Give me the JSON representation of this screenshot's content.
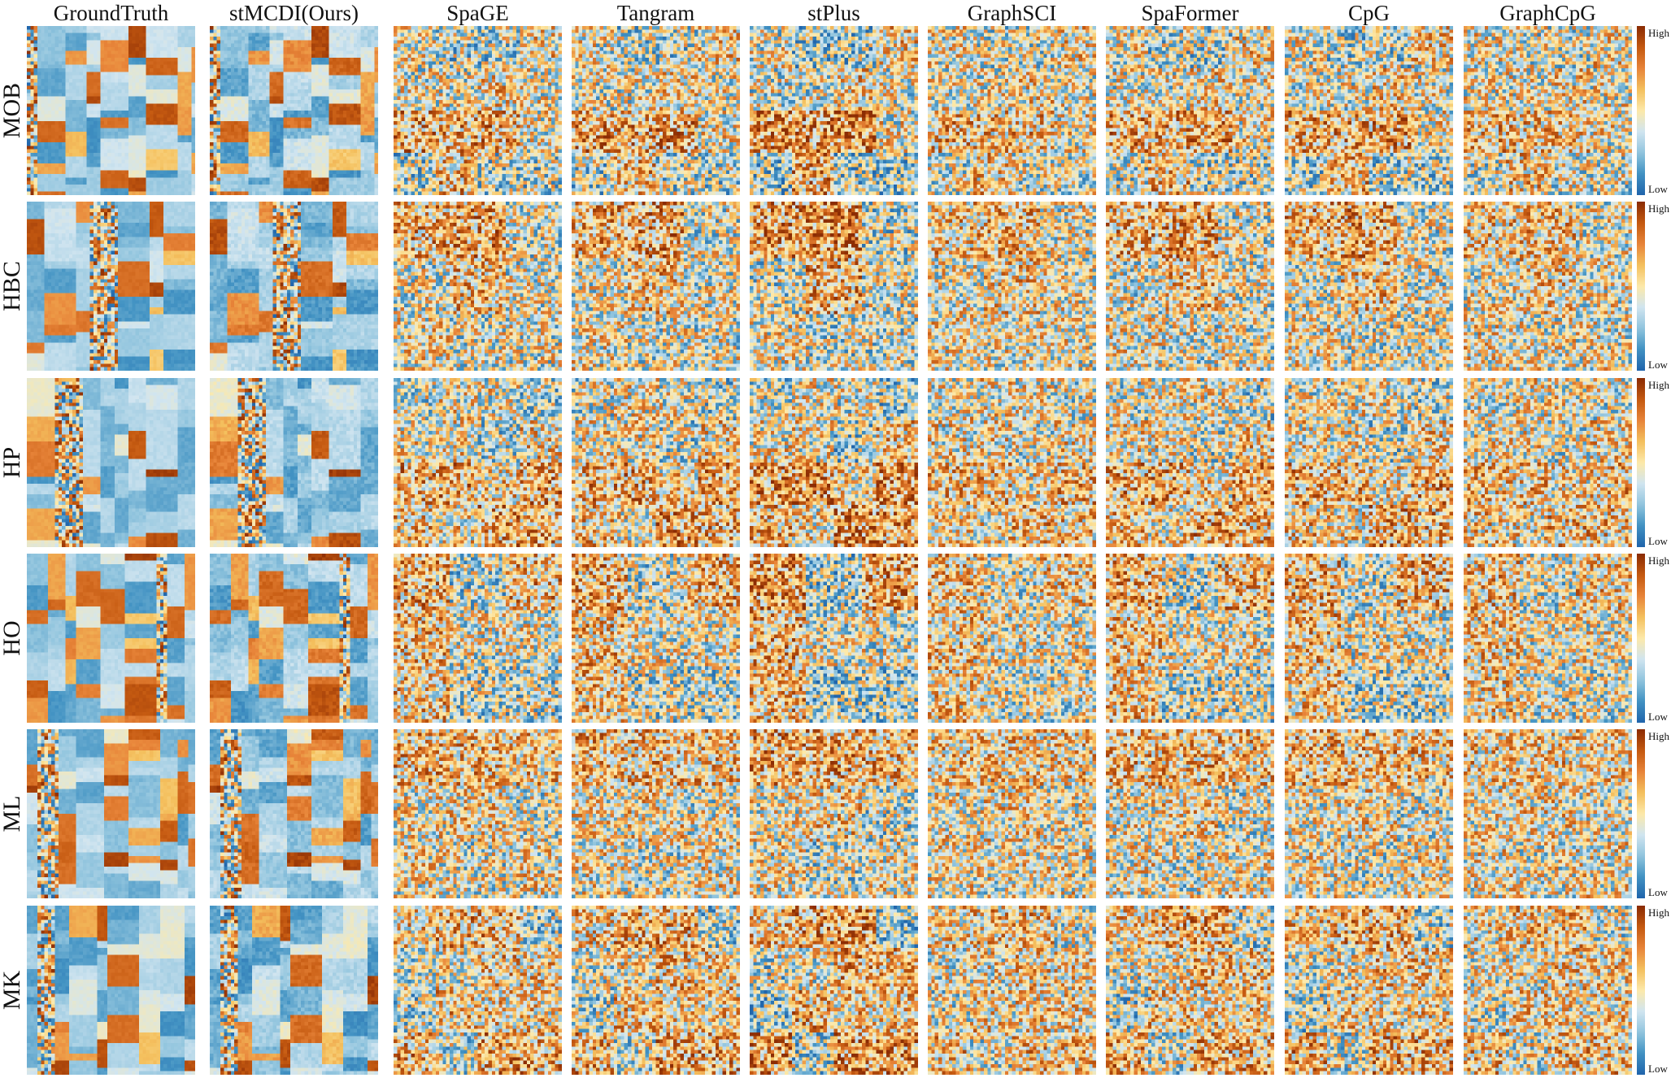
{
  "figure": {
    "methods": [
      "GroundTruth",
      "stMCDI(Ours)",
      "SpaGE",
      "Tangram",
      "stPlus",
      "GraphSCI",
      "SpaFormer",
      "CpG",
      "GraphCpG"
    ],
    "datasets": [
      "MOB",
      "HBC",
      "HP",
      "HO",
      "ML",
      "MK"
    ],
    "colorbar": {
      "high_label": "High",
      "low_label": "Low"
    },
    "colormap": [
      "#2166ac",
      "#4393c3",
      "#92c5de",
      "#d1e5f0",
      "#fde9a9",
      "#f4c05e",
      "#e8853a",
      "#c55a11",
      "#8c2d04"
    ]
  },
  "chart_data": {
    "type": "heatmap",
    "title": "",
    "xlabel": "",
    "ylabel": "",
    "columns": [
      "GroundTruth",
      "stMCDI(Ours)",
      "SpaGE",
      "Tangram",
      "stPlus",
      "GraphSCI",
      "SpaFormer",
      "CpG",
      "GraphCpG"
    ],
    "rows": [
      "MOB",
      "HBC",
      "HP",
      "HO",
      "ML",
      "MK"
    ],
    "value_scale": [
      "Low",
      "High"
    ],
    "grid": false,
    "legend": "right colorbar per row"
  }
}
